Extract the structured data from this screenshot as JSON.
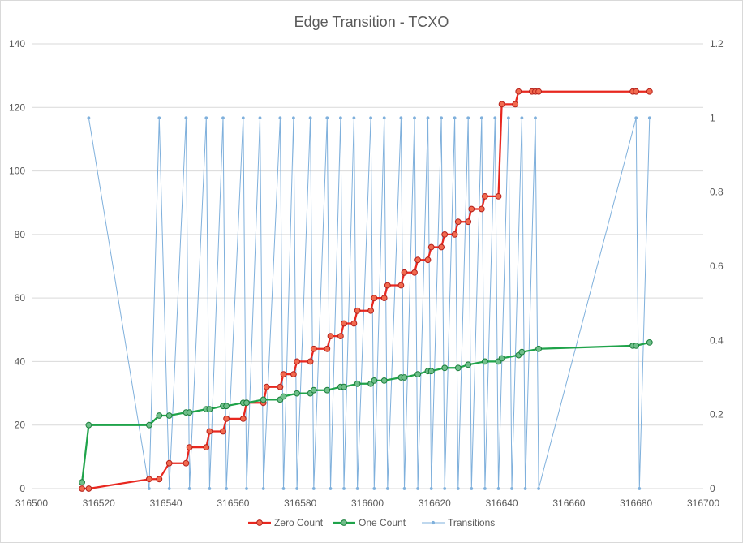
{
  "chart_data": {
    "type": "line",
    "title": "Edge Transition - TCXO",
    "xlim": [
      316500,
      316700
    ],
    "x_ticks": [
      316500,
      316520,
      316540,
      316560,
      316580,
      316600,
      316620,
      316640,
      316660,
      316680,
      316700
    ],
    "ylim": [
      0,
      140
    ],
    "y_ticks": [
      0,
      20,
      40,
      60,
      80,
      100,
      120,
      140
    ],
    "y2lim": [
      0,
      1.2
    ],
    "y2_ticks": [
      0,
      0.2,
      0.4,
      0.6,
      0.8,
      1,
      1.2
    ],
    "grid": true,
    "legend_position": "bottom",
    "series": [
      {
        "name": "Zero Count",
        "color": "#e8271f",
        "marker_fill": "#f26a4f",
        "axis": "primary",
        "x": [
          316515,
          316517,
          316535,
          316538,
          316541,
          316546,
          316547,
          316552,
          316553,
          316557,
          316558,
          316563,
          316564,
          316569,
          316570,
          316574,
          316575,
          316578,
          316579,
          316583,
          316584,
          316588,
          316589,
          316592,
          316593,
          316596,
          316597,
          316601,
          316602,
          316605,
          316606,
          316610,
          316611,
          316614,
          316615,
          316618,
          316619,
          316622,
          316623,
          316626,
          316627,
          316630,
          316631,
          316634,
          316635,
          316639,
          316640,
          316644,
          316645,
          316649,
          316650,
          316651,
          316679,
          316680,
          316684
        ],
        "y": [
          0,
          0,
          3,
          3,
          8,
          8,
          13,
          13,
          18,
          18,
          22,
          22,
          27,
          27,
          32,
          32,
          36,
          36,
          40,
          40,
          44,
          44,
          48,
          48,
          52,
          52,
          56,
          56,
          60,
          60,
          64,
          64,
          68,
          68,
          72,
          72,
          76,
          76,
          80,
          80,
          84,
          84,
          88,
          88,
          92,
          92,
          121,
          121,
          125,
          125,
          125,
          125,
          125,
          125,
          125
        ]
      },
      {
        "name": "One Count",
        "color": "#1fa34a",
        "marker_fill": "#6fbf8a",
        "axis": "primary",
        "x": [
          316515,
          316517,
          316535,
          316538,
          316541,
          316546,
          316547,
          316552,
          316553,
          316557,
          316558,
          316563,
          316564,
          316569,
          316574,
          316575,
          316579,
          316583,
          316584,
          316588,
          316592,
          316593,
          316597,
          316601,
          316602,
          316605,
          316610,
          316611,
          316615,
          316618,
          316619,
          316623,
          316627,
          316630,
          316635,
          316639,
          316640,
          316645,
          316646,
          316651,
          316679,
          316680,
          316684
        ],
        "y": [
          2,
          20,
          20,
          23,
          23,
          24,
          24,
          25,
          25,
          26,
          26,
          27,
          27,
          28,
          28,
          29,
          30,
          30,
          31,
          31,
          32,
          32,
          33,
          33,
          34,
          34,
          35,
          35,
          36,
          37,
          37,
          38,
          38,
          39,
          40,
          40,
          41,
          42,
          43,
          44,
          45,
          45,
          46
        ]
      },
      {
        "name": "Transitions",
        "color": "#7fb0dc",
        "marker_fill": "#7fb0dc",
        "axis": "secondary",
        "x": [
          316517,
          316535,
          316538,
          316541,
          316546,
          316547,
          316552,
          316553,
          316557,
          316558,
          316563,
          316564,
          316568,
          316569,
          316574,
          316575,
          316578,
          316579,
          316583,
          316584,
          316588,
          316589,
          316592,
          316593,
          316596,
          316597,
          316601,
          316602,
          316605,
          316606,
          316610,
          316611,
          316614,
          316615,
          316618,
          316619,
          316622,
          316623,
          316626,
          316627,
          316630,
          316631,
          316634,
          316635,
          316638,
          316639,
          316642,
          316643,
          316646,
          316647,
          316650,
          316651,
          316680,
          316681,
          316684
        ],
        "y": [
          1,
          0,
          1,
          0,
          1,
          0,
          1,
          0,
          1,
          0,
          1,
          0,
          1,
          0,
          1,
          0,
          1,
          0,
          1,
          0,
          1,
          0,
          1,
          0,
          1,
          0,
          1,
          0,
          1,
          0,
          1,
          0,
          1,
          0,
          1,
          0,
          1,
          0,
          1,
          0,
          1,
          0,
          1,
          0,
          1,
          0,
          1,
          0,
          1,
          0,
          1,
          0,
          1,
          0,
          1
        ]
      }
    ]
  }
}
